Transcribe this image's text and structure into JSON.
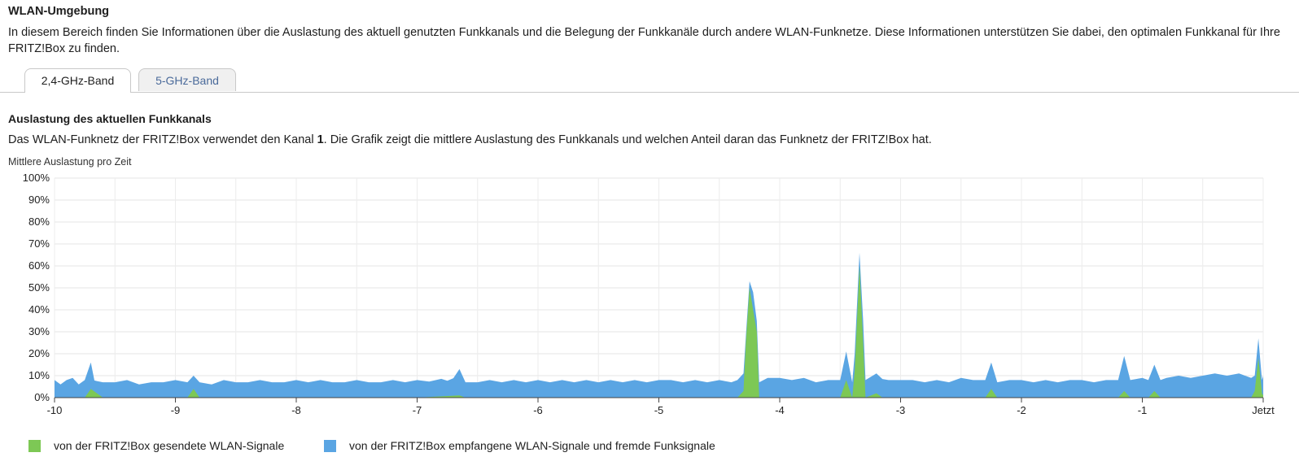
{
  "header": {
    "title": "WLAN-Umgebung",
    "intro": "In diesem Bereich finden Sie Informationen über die Auslastung des aktuell genutzten Funkkanals und die Belegung der Funkkanäle durch andere WLAN-Funknetze. Diese Informationen unterstützen Sie dabei, den optimalen Funkkanal für Ihre FRITZ!Box zu finden."
  },
  "tabs": [
    {
      "label": "2,4-GHz-Band",
      "active": true
    },
    {
      "label": "5-GHz-Band",
      "active": false
    }
  ],
  "section": {
    "title": "Auslastung des aktuellen Funkkanals",
    "desc_before": "Das WLAN-Funknetz der FRITZ!Box verwendet den Kanal ",
    "channel": "1",
    "desc_after": ". Die Grafik zeigt die mittlere Auslastung des Funkkanals und welchen Anteil daran das Funknetz der FRITZ!Box hat.",
    "chart_label": "Mittlere Auslastung pro Zeit"
  },
  "legend": [
    {
      "label": "von der FRITZ!Box gesendete WLAN-Signale",
      "color": "#7dc855"
    },
    {
      "label": "von der FRITZ!Box empfangene WLAN-Signale und fremde Funksignale",
      "color": "#5aa5e3"
    }
  ],
  "chart_data": {
    "type": "area",
    "stacked": true,
    "x_ticks": [
      "-10",
      "-9",
      "-8",
      "-7",
      "-6",
      "-5",
      "-4",
      "-3",
      "-2",
      "-1",
      "Jetzt"
    ],
    "y_ticks": [
      "0%",
      "10%",
      "20%",
      "30%",
      "40%",
      "50%",
      "60%",
      "70%",
      "80%",
      "90%",
      "100%"
    ],
    "xlim": [
      -10,
      0
    ],
    "ylim": [
      0,
      100
    ],
    "grid": true,
    "series": [
      {
        "name": "von der FRITZ!Box gesendete WLAN-Signale",
        "color": "#7dc855",
        "points": [
          [
            -10,
            0
          ],
          [
            -9.75,
            0
          ],
          [
            -9.7,
            4
          ],
          [
            -9.65,
            2
          ],
          [
            -9.6,
            0
          ],
          [
            -8.9,
            0
          ],
          [
            -8.85,
            4
          ],
          [
            -8.8,
            0
          ],
          [
            -7,
            0
          ],
          [
            -6.65,
            1
          ],
          [
            -6.6,
            0
          ],
          [
            -4.35,
            0
          ],
          [
            -4.3,
            3
          ],
          [
            -4.28,
            25
          ],
          [
            -4.25,
            50
          ],
          [
            -4.22,
            40
          ],
          [
            -4.19,
            30
          ],
          [
            -4.17,
            0
          ],
          [
            -3.5,
            0
          ],
          [
            -3.45,
            8
          ],
          [
            -3.4,
            0
          ],
          [
            -3.38,
            12
          ],
          [
            -3.34,
            60
          ],
          [
            -3.31,
            25
          ],
          [
            -3.29,
            0
          ],
          [
            -3.2,
            2
          ],
          [
            -3.15,
            0
          ],
          [
            -2.3,
            0
          ],
          [
            -2.25,
            4
          ],
          [
            -2.2,
            0
          ],
          [
            -1.2,
            0
          ],
          [
            -1.15,
            3
          ],
          [
            -1.1,
            0
          ],
          [
            -0.95,
            0
          ],
          [
            -0.9,
            3
          ],
          [
            -0.85,
            0
          ],
          [
            -0.1,
            0
          ],
          [
            -0.07,
            3
          ],
          [
            -0.04,
            18
          ],
          [
            -0.01,
            2
          ],
          [
            0,
            1
          ]
        ]
      },
      {
        "name": "von der FRITZ!Box empfangene WLAN-Signale und fremde Funksignale",
        "color": "#5aa5e3",
        "points": [
          [
            -10,
            8
          ],
          [
            -9.95,
            6
          ],
          [
            -9.9,
            8
          ],
          [
            -9.85,
            9
          ],
          [
            -9.8,
            6
          ],
          [
            -9.75,
            8
          ],
          [
            -9.7,
            12
          ],
          [
            -9.67,
            5
          ],
          [
            -9.6,
            7
          ],
          [
            -9.5,
            7
          ],
          [
            -9.4,
            8
          ],
          [
            -9.3,
            6
          ],
          [
            -9.2,
            7
          ],
          [
            -9.1,
            7
          ],
          [
            -9,
            8
          ],
          [
            -8.9,
            7
          ],
          [
            -8.85,
            6
          ],
          [
            -8.8,
            7
          ],
          [
            -8.7,
            6
          ],
          [
            -8.6,
            8
          ],
          [
            -8.5,
            7
          ],
          [
            -8.4,
            7
          ],
          [
            -8.3,
            8
          ],
          [
            -8.2,
            7
          ],
          [
            -8.1,
            7
          ],
          [
            -8,
            8
          ],
          [
            -7.9,
            7
          ],
          [
            -7.8,
            8
          ],
          [
            -7.7,
            7
          ],
          [
            -7.6,
            7
          ],
          [
            -7.5,
            8
          ],
          [
            -7.4,
            7
          ],
          [
            -7.3,
            7
          ],
          [
            -7.2,
            8
          ],
          [
            -7.1,
            7
          ],
          [
            -7,
            8
          ],
          [
            -6.9,
            7
          ],
          [
            -6.8,
            8
          ],
          [
            -6.75,
            7
          ],
          [
            -6.7,
            8
          ],
          [
            -6.65,
            12
          ],
          [
            -6.6,
            7
          ],
          [
            -6.5,
            7
          ],
          [
            -6.4,
            8
          ],
          [
            -6.3,
            7
          ],
          [
            -6.2,
            8
          ],
          [
            -6.1,
            7
          ],
          [
            -6,
            8
          ],
          [
            -5.9,
            7
          ],
          [
            -5.8,
            8
          ],
          [
            -5.7,
            7
          ],
          [
            -5.6,
            8
          ],
          [
            -5.5,
            7
          ],
          [
            -5.4,
            8
          ],
          [
            -5.3,
            7
          ],
          [
            -5.2,
            8
          ],
          [
            -5.1,
            7
          ],
          [
            -5,
            8
          ],
          [
            -4.9,
            8
          ],
          [
            -4.8,
            7
          ],
          [
            -4.7,
            8
          ],
          [
            -4.6,
            7
          ],
          [
            -4.5,
            8
          ],
          [
            -4.4,
            7
          ],
          [
            -4.35,
            8
          ],
          [
            -4.3,
            8
          ],
          [
            -4.28,
            3
          ],
          [
            -4.25,
            3
          ],
          [
            -4.22,
            8
          ],
          [
            -4.19,
            5
          ],
          [
            -4.17,
            7
          ],
          [
            -4.1,
            9
          ],
          [
            -4,
            9
          ],
          [
            -3.9,
            8
          ],
          [
            -3.8,
            9
          ],
          [
            -3.7,
            7
          ],
          [
            -3.6,
            8
          ],
          [
            -3.5,
            8
          ],
          [
            -3.45,
            13
          ],
          [
            -3.4,
            7
          ],
          [
            -3.38,
            8
          ],
          [
            -3.34,
            6
          ],
          [
            -3.31,
            10
          ],
          [
            -3.29,
            8
          ],
          [
            -3.2,
            9
          ],
          [
            -3.1,
            8
          ],
          [
            -3,
            8
          ],
          [
            -2.9,
            8
          ],
          [
            -2.8,
            7
          ],
          [
            -2.7,
            8
          ],
          [
            -2.6,
            7
          ],
          [
            -2.5,
            9
          ],
          [
            -2.4,
            8
          ],
          [
            -2.3,
            8
          ],
          [
            -2.25,
            12
          ],
          [
            -2.2,
            7
          ],
          [
            -2.1,
            8
          ],
          [
            -2,
            8
          ],
          [
            -1.9,
            7
          ],
          [
            -1.8,
            8
          ],
          [
            -1.7,
            7
          ],
          [
            -1.6,
            8
          ],
          [
            -1.5,
            8
          ],
          [
            -1.4,
            7
          ],
          [
            -1.3,
            8
          ],
          [
            -1.2,
            8
          ],
          [
            -1.15,
            16
          ],
          [
            -1.1,
            8
          ],
          [
            -1,
            9
          ],
          [
            -0.95,
            8
          ],
          [
            -0.9,
            12
          ],
          [
            -0.85,
            8
          ],
          [
            -0.8,
            9
          ],
          [
            -0.7,
            10
          ],
          [
            -0.6,
            9
          ],
          [
            -0.5,
            10
          ],
          [
            -0.4,
            11
          ],
          [
            -0.3,
            10
          ],
          [
            -0.2,
            11
          ],
          [
            -0.1,
            9
          ],
          [
            -0.07,
            7
          ],
          [
            -0.04,
            9
          ],
          [
            -0.01,
            6
          ],
          [
            0,
            9
          ]
        ]
      }
    ]
  }
}
